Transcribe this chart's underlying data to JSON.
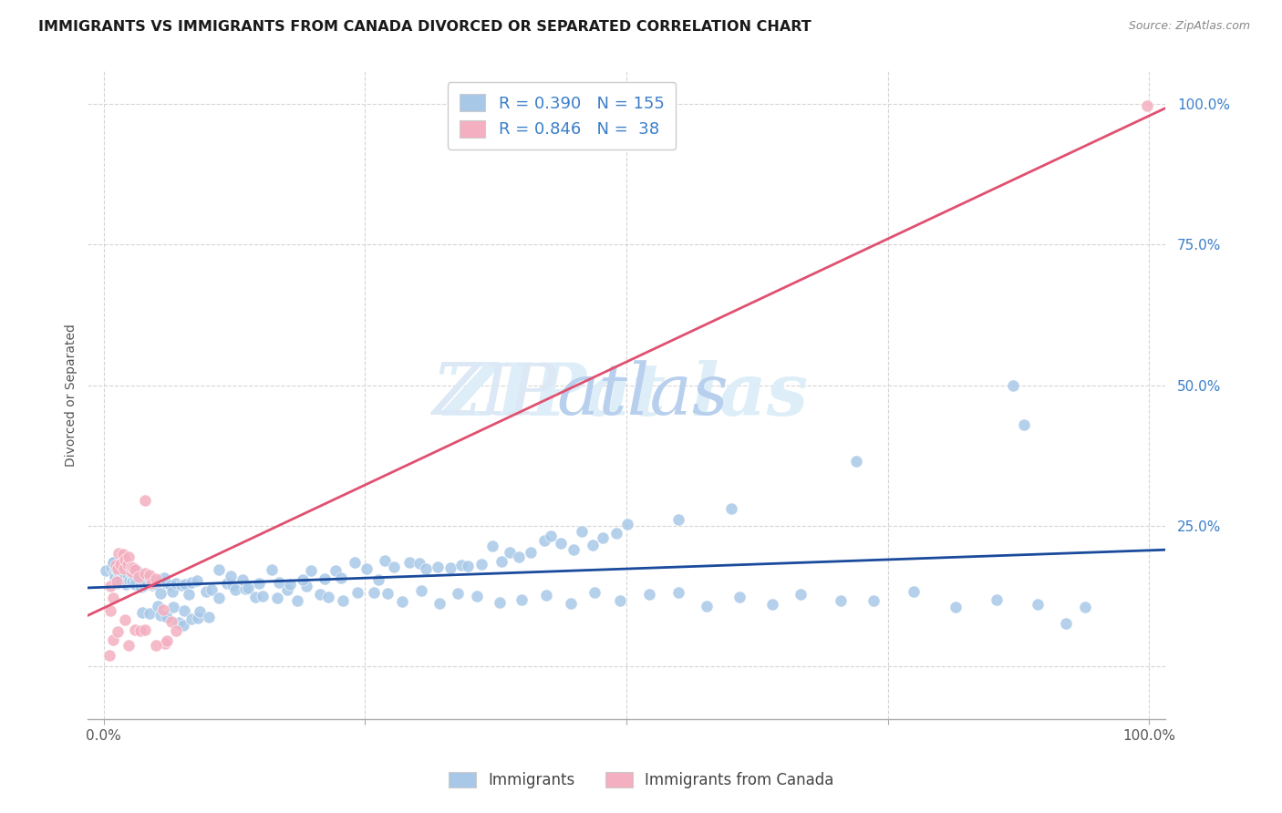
{
  "title": "IMMIGRANTS VS IMMIGRANTS FROM CANADA DIVORCED OR SEPARATED CORRELATION CHART",
  "source": "Source: ZipAtlas.com",
  "ylabel": "Divorced or Separated",
  "legend_label1": "Immigrants",
  "legend_label2": "Immigrants from Canada",
  "color_blue": "#a8c8e8",
  "color_pink": "#f4afc0",
  "line_blue": "#1a4a9c",
  "line_pink": "#e05070",
  "text_color_blue": "#3a7eca",
  "legend_text_color": "#3a7eca",
  "watermark_zip": "ZIP",
  "watermark_atlas": "atlas",
  "watermark_color_zip": "#ddeeff",
  "watermark_color_atlas": "#c8dff5",
  "R1": 0.39,
  "N1": 155,
  "R2": 0.846,
  "N2": 38,
  "title_fontsize": 11.5,
  "axis_label_fontsize": 10,
  "tick_fontsize": 11,
  "legend_fontsize": 13,
  "blue_x": [
    0.005,
    0.007,
    0.008,
    0.009,
    0.01,
    0.01,
    0.011,
    0.012,
    0.012,
    0.013,
    0.014,
    0.015,
    0.015,
    0.016,
    0.017,
    0.018,
    0.018,
    0.019,
    0.02,
    0.02,
    0.021,
    0.022,
    0.022,
    0.023,
    0.024,
    0.025,
    0.025,
    0.026,
    0.027,
    0.028,
    0.029,
    0.03,
    0.031,
    0.032,
    0.033,
    0.034,
    0.035,
    0.036,
    0.038,
    0.04,
    0.042,
    0.044,
    0.046,
    0.048,
    0.05,
    0.052,
    0.055,
    0.058,
    0.06,
    0.063,
    0.066,
    0.07,
    0.074,
    0.078,
    0.082,
    0.087,
    0.092,
    0.097,
    0.103,
    0.109,
    0.115,
    0.122,
    0.129,
    0.137,
    0.145,
    0.154,
    0.163,
    0.173,
    0.183,
    0.194,
    0.205,
    0.217,
    0.23,
    0.243,
    0.257,
    0.272,
    0.288,
    0.305,
    0.322,
    0.34,
    0.359,
    0.379,
    0.4,
    0.422,
    0.445,
    0.469,
    0.494,
    0.52,
    0.547,
    0.576,
    0.606,
    0.637,
    0.669,
    0.703,
    0.738,
    0.775,
    0.813,
    0.853,
    0.895,
    0.938,
    0.04,
    0.045,
    0.05,
    0.055,
    0.06,
    0.065,
    0.07,
    0.075,
    0.08,
    0.085,
    0.09,
    0.095,
    0.1,
    0.11,
    0.12,
    0.13,
    0.14,
    0.15,
    0.16,
    0.17,
    0.18,
    0.19,
    0.2,
    0.21,
    0.22,
    0.23,
    0.24,
    0.25,
    0.26,
    0.27,
    0.28,
    0.29,
    0.3,
    0.31,
    0.32,
    0.33,
    0.34,
    0.35,
    0.36,
    0.37,
    0.38,
    0.39,
    0.4,
    0.41,
    0.42,
    0.43,
    0.44,
    0.45,
    0.46,
    0.47,
    0.48,
    0.49,
    0.5,
    0.55,
    0.6
  ],
  "blue_y": [
    0.175,
    0.168,
    0.162,
    0.17,
    0.155,
    0.18,
    0.165,
    0.172,
    0.158,
    0.163,
    0.17,
    0.162,
    0.155,
    0.168,
    0.16,
    0.158,
    0.165,
    0.155,
    0.162,
    0.17,
    0.158,
    0.155,
    0.165,
    0.16,
    0.155,
    0.162,
    0.158,
    0.155,
    0.16,
    0.158,
    0.155,
    0.16,
    0.155,
    0.158,
    0.155,
    0.152,
    0.155,
    0.15,
    0.152,
    0.15,
    0.148,
    0.145,
    0.148,
    0.145,
    0.143,
    0.145,
    0.142,
    0.14,
    0.143,
    0.14,
    0.138,
    0.142,
    0.138,
    0.14,
    0.138,
    0.135,
    0.138,
    0.135,
    0.133,
    0.135,
    0.132,
    0.135,
    0.132,
    0.13,
    0.132,
    0.13,
    0.128,
    0.132,
    0.128,
    0.13,
    0.128,
    0.125,
    0.128,
    0.125,
    0.122,
    0.125,
    0.122,
    0.125,
    0.122,
    0.12,
    0.122,
    0.12,
    0.118,
    0.122,
    0.118,
    0.12,
    0.118,
    0.116,
    0.12,
    0.118,
    0.118,
    0.116,
    0.12,
    0.115,
    0.118,
    0.12,
    0.118,
    0.116,
    0.115,
    0.118,
    0.088,
    0.092,
    0.095,
    0.088,
    0.092,
    0.09,
    0.088,
    0.085,
    0.092,
    0.088,
    0.09,
    0.085,
    0.092,
    0.16,
    0.155,
    0.158,
    0.152,
    0.155,
    0.158,
    0.152,
    0.155,
    0.16,
    0.158,
    0.165,
    0.162,
    0.168,
    0.17,
    0.172,
    0.168,
    0.175,
    0.18,
    0.178,
    0.182,
    0.185,
    0.188,
    0.185,
    0.19,
    0.192,
    0.195,
    0.2,
    0.198,
    0.202,
    0.205,
    0.21,
    0.215,
    0.218,
    0.22,
    0.222,
    0.225,
    0.228,
    0.232,
    0.235,
    0.24,
    0.26,
    0.28
  ],
  "pink_x": [
    0.005,
    0.007,
    0.008,
    0.01,
    0.01,
    0.012,
    0.013,
    0.015,
    0.015,
    0.017,
    0.018,
    0.02,
    0.02,
    0.022,
    0.025,
    0.025,
    0.028,
    0.03,
    0.032,
    0.035,
    0.038,
    0.04,
    0.043,
    0.046,
    0.05,
    0.055,
    0.06,
    0.065,
    0.015,
    0.02,
    0.025,
    0.03,
    0.035,
    0.04,
    0.05,
    0.06,
    0.07,
    1.0
  ],
  "pink_y": [
    0.1,
    0.02,
    0.15,
    0.13,
    0.055,
    0.175,
    0.16,
    0.2,
    0.18,
    0.19,
    0.17,
    0.2,
    0.18,
    0.185,
    0.175,
    0.19,
    0.18,
    0.17,
    0.165,
    0.16,
    0.3,
    0.175,
    0.165,
    0.155,
    0.15,
    0.1,
    0.04,
    0.075,
    0.062,
    0.08,
    0.03,
    0.065,
    0.055,
    0.07,
    0.045,
    0.055,
    0.055,
    1.0
  ]
}
